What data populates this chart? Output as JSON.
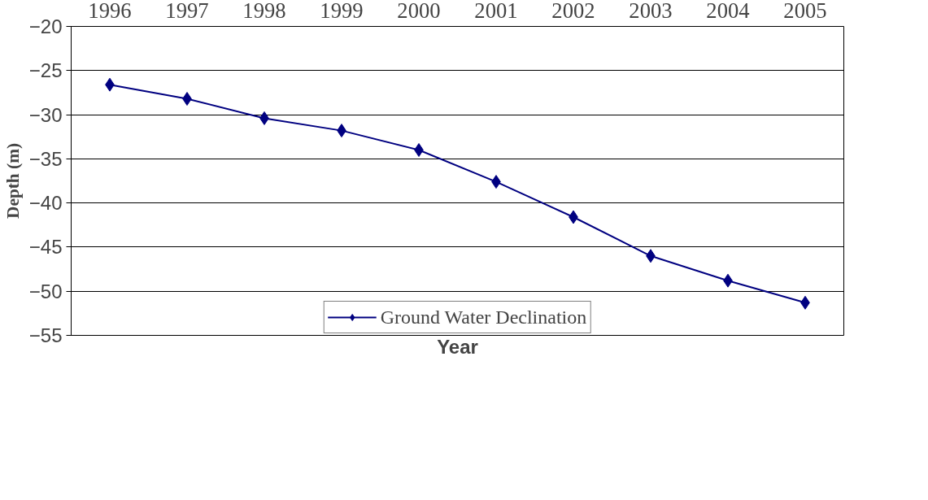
{
  "chart_data": {
    "type": "line",
    "xlabel": "Year",
    "ylabel": "Depth (m)",
    "categories": [
      "1996",
      "1997",
      "1998",
      "1999",
      "2000",
      "2001",
      "2002",
      "2003",
      "2004",
      "2005"
    ],
    "series": [
      {
        "name": "Ground Water Declination",
        "color": "#000080",
        "values": [
          -26.6,
          -28.2,
          -30.4,
          -31.8,
          -34.0,
          -37.6,
          -41.6,
          -46.0,
          -48.8,
          -51.3
        ]
      }
    ],
    "ylim": [
      -55,
      -20
    ],
    "yticks": [
      -55,
      -50,
      -45,
      -40,
      -35,
      -30,
      -25,
      -20
    ],
    "grid": "y",
    "legend": "bottom",
    "marker": "diamond",
    "line_style": "solid"
  }
}
